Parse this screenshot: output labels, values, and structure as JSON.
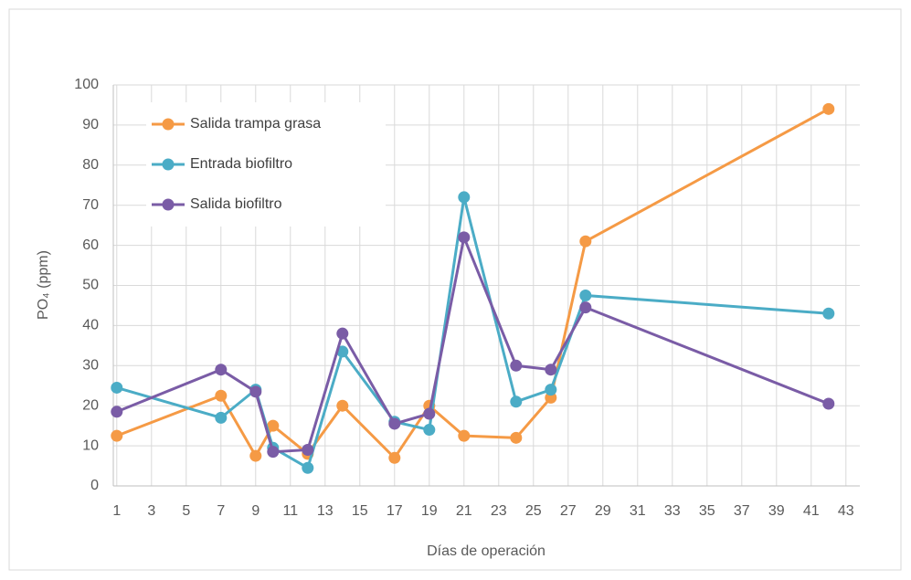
{
  "chart_data": {
    "type": "line",
    "x_label": "Días de operación",
    "y_label": "PO₄ (ppm)",
    "x": [
      1,
      7,
      9,
      10,
      12,
      14,
      17,
      19,
      21,
      24,
      26,
      28,
      42
    ],
    "series": [
      {
        "name": "Salida trampa grasa",
        "color": "#f59a45",
        "values": [
          12.5,
          22.5,
          7.5,
          15,
          8,
          20,
          7,
          20,
          12.5,
          12,
          22,
          61,
          94
        ]
      },
      {
        "name": "Entrada biofiltro",
        "color": "#4bacc6",
        "values": [
          24.5,
          17,
          24,
          9.5,
          4.5,
          33.5,
          16,
          14,
          72,
          21,
          24,
          47.5,
          43
        ]
      },
      {
        "name": "Salida biofiltro",
        "color": "#7a5ca6",
        "values": [
          18.5,
          29,
          23.5,
          8.5,
          9,
          38,
          15.5,
          18,
          62,
          30,
          29,
          44.5,
          20.5
        ]
      }
    ],
    "xlim": [
      0.8,
      43.8
    ],
    "xticks": [
      1,
      3,
      5,
      7,
      9,
      11,
      13,
      15,
      17,
      19,
      21,
      23,
      25,
      27,
      29,
      31,
      33,
      35,
      37,
      39,
      41,
      43
    ],
    "ylim": [
      0,
      100
    ],
    "yticks": [
      0,
      10,
      20,
      30,
      40,
      50,
      60,
      70,
      80,
      90,
      100
    ],
    "grid": true,
    "legend": "upper-left"
  }
}
